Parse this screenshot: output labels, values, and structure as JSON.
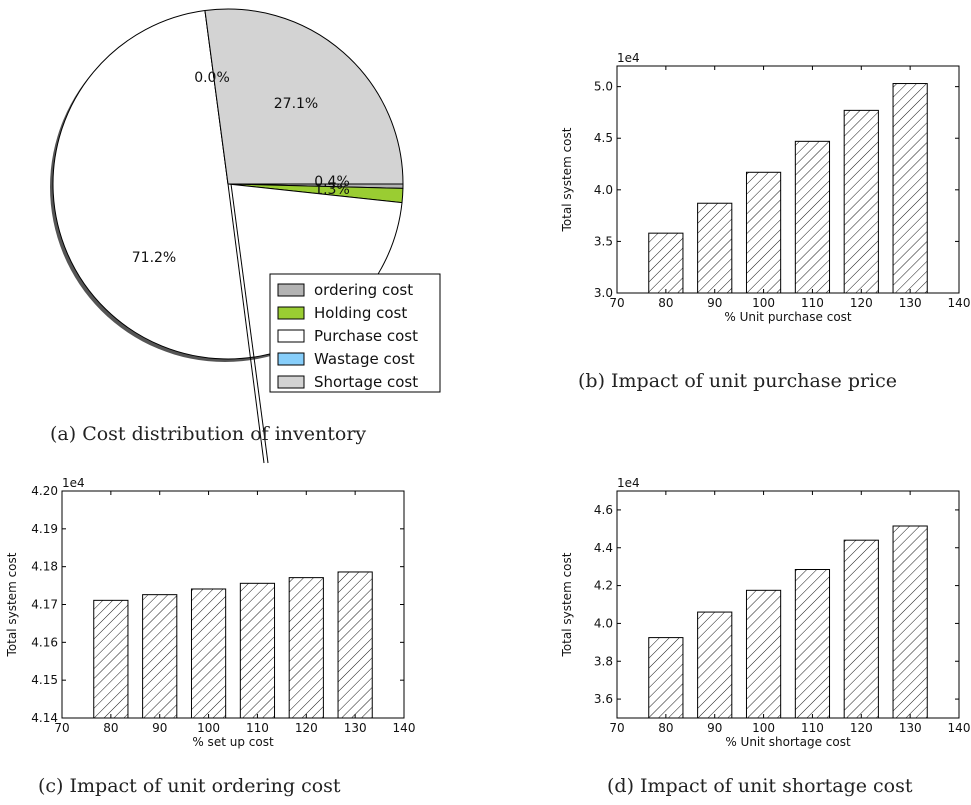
{
  "chart_data": [
    {
      "id": "pie",
      "type": "pie",
      "caption": "(a) Cost distribution of inventory",
      "slices": [
        {
          "name": "ordering cost",
          "value": 0.4,
          "label": "0.4%",
          "color": "#b3b3b3"
        },
        {
          "name": "Holding cost",
          "value": 1.3,
          "label": "1.3%",
          "color": "#9acd32"
        },
        {
          "name": "Purchase cost",
          "value": 71.2,
          "label": "71.2%",
          "color": "#ffffff"
        },
        {
          "name": "Wastage cost",
          "value": 0.0,
          "label": "0.0%",
          "color": "#87cefa"
        },
        {
          "name": "Shortage cost",
          "value": 27.1,
          "label": "27.1%",
          "color": "#d3d3d3"
        }
      ],
      "legend": [
        "ordering cost",
        "Holding cost",
        "Purchase cost",
        "Wastage cost",
        "Shortage cost"
      ]
    },
    {
      "id": "b",
      "type": "bar",
      "caption": "(b) Impact of unit purchase price",
      "categories": [
        80,
        90,
        100,
        110,
        120,
        130
      ],
      "values": [
        35800,
        38700,
        41700,
        44700,
        47700,
        50300
      ],
      "xlabel": "% Unit purchase cost",
      "ylabel": "Total system cost",
      "scale_label": "1e4",
      "xlim": [
        70,
        140
      ],
      "ylim": [
        30000,
        52000
      ],
      "xticks": [
        "70",
        "80",
        "90",
        "100",
        "110",
        "120",
        "130",
        "140"
      ],
      "yticks": [
        {
          "value": 30000,
          "label": "3.0"
        },
        {
          "value": 35000,
          "label": "3.5"
        },
        {
          "value": 40000,
          "label": "4.0"
        },
        {
          "value": 45000,
          "label": "4.5"
        },
        {
          "value": 50000,
          "label": "5.0"
        }
      ]
    },
    {
      "id": "c",
      "type": "bar",
      "caption": "(c) Impact of unit ordering cost",
      "categories": [
        80,
        90,
        100,
        110,
        120,
        130
      ],
      "values": [
        41711,
        41726,
        41741,
        41756,
        41771,
        41786
      ],
      "xlabel": "% set up cost",
      "ylabel": "Total system cost",
      "scale_label": "1e4",
      "xlim": [
        70,
        140
      ],
      "ylim": [
        41400,
        42000
      ],
      "xticks": [
        "70",
        "80",
        "90",
        "100",
        "110",
        "120",
        "130",
        "140"
      ],
      "yticks": [
        {
          "value": 41400,
          "label": "4.14"
        },
        {
          "value": 41500,
          "label": "4.15"
        },
        {
          "value": 41600,
          "label": "4.16"
        },
        {
          "value": 41700,
          "label": "4.17"
        },
        {
          "value": 41800,
          "label": "4.18"
        },
        {
          "value": 41900,
          "label": "4.19"
        },
        {
          "value": 42000,
          "label": "4.20"
        }
      ]
    },
    {
      "id": "d",
      "type": "bar",
      "caption": "(d) Impact of unit shortage cost",
      "categories": [
        80,
        90,
        100,
        110,
        120,
        130
      ],
      "values": [
        39250,
        40600,
        41750,
        42850,
        44400,
        45150
      ],
      "xlabel": "% Unit shortage cost",
      "ylabel": "Total system cost",
      "scale_label": "1e4",
      "xlim": [
        70,
        140
      ],
      "ylim": [
        35000,
        47000
      ],
      "xticks": [
        "70",
        "80",
        "90",
        "100",
        "110",
        "120",
        "130",
        "140"
      ],
      "yticks": [
        {
          "value": 36000,
          "label": "3.6"
        },
        {
          "value": 38000,
          "label": "3.8"
        },
        {
          "value": 40000,
          "label": "4.0"
        },
        {
          "value": 42000,
          "label": "4.2"
        },
        {
          "value": 44000,
          "label": "4.4"
        },
        {
          "value": 46000,
          "label": "4.6"
        }
      ]
    }
  ]
}
